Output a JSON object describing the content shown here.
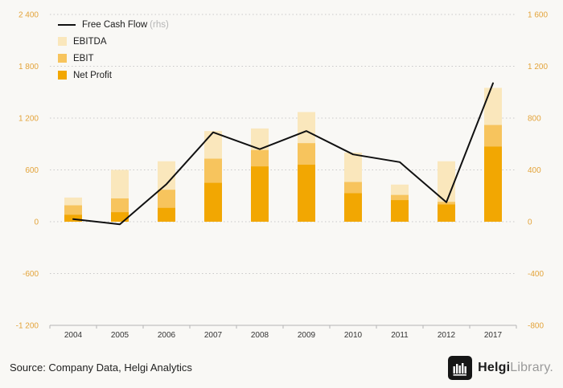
{
  "legend": {
    "fcf_label": "Free Cash Flow",
    "fcf_suffix": "(rhs)",
    "ebitda_label": "EBITDA",
    "ebit_label": "EBIT",
    "net_profit_label": "Net Profit"
  },
  "footer": {
    "source": "Source: Company Data, Helgi Analytics",
    "brand_name": "Helgi",
    "brand_suffix": "Library",
    "brand_period": "."
  },
  "colors": {
    "net_profit": "#F2A702",
    "ebit": "#F7C45D",
    "ebitda": "#FAE7BC",
    "fcf_line": "#111111",
    "axis_ticks": "#E3A339",
    "grid": "#C9C9C9",
    "axis_line": "#B5B5B5",
    "year_labels": "#333333"
  },
  "chart_data": {
    "type": "bar",
    "bar_style": "overlapped",
    "grid": "horizontal-dotted",
    "legend_position": "top-left",
    "categories": [
      "2004",
      "2005",
      "2006",
      "2007",
      "2008",
      "2009",
      "2010",
      "2011",
      "2012",
      "2017"
    ],
    "series": [
      {
        "name": "EBITDA",
        "type": "bar",
        "axis": "left",
        "color": "#FAE7BC",
        "values": [
          280,
          600,
          700,
          1050,
          1080,
          1270,
          800,
          430,
          700,
          1550
        ]
      },
      {
        "name": "EBIT",
        "type": "bar",
        "axis": "left",
        "color": "#F7C45D",
        "values": [
          190,
          270,
          370,
          730,
          830,
          910,
          460,
          310,
          230,
          1120
        ]
      },
      {
        "name": "Net Profit",
        "type": "bar",
        "axis": "left",
        "color": "#F2A702",
        "values": [
          80,
          110,
          160,
          450,
          640,
          660,
          330,
          250,
          200,
          870
        ]
      },
      {
        "name": "Free Cash Flow",
        "type": "line",
        "axis": "right",
        "color": "#111111",
        "values": [
          20,
          -20,
          290,
          690,
          560,
          700,
          520,
          460,
          150,
          1070
        ]
      }
    ],
    "left_axis": {
      "min": -1200,
      "max": 2400,
      "ticks": [
        2400,
        1800,
        1200,
        600,
        0,
        -600,
        -1200
      ],
      "tick_labels": [
        "2 400",
        "1 800",
        "1 200",
        "600",
        "0",
        "-600",
        "-1 200"
      ]
    },
    "right_axis": {
      "min": -800,
      "max": 1600,
      "ticks": [
        1600,
        1200,
        800,
        400,
        0,
        -400,
        -800
      ],
      "tick_labels": [
        "1 600",
        "1 200",
        "800",
        "400",
        "0",
        "-400",
        "-800"
      ]
    }
  }
}
